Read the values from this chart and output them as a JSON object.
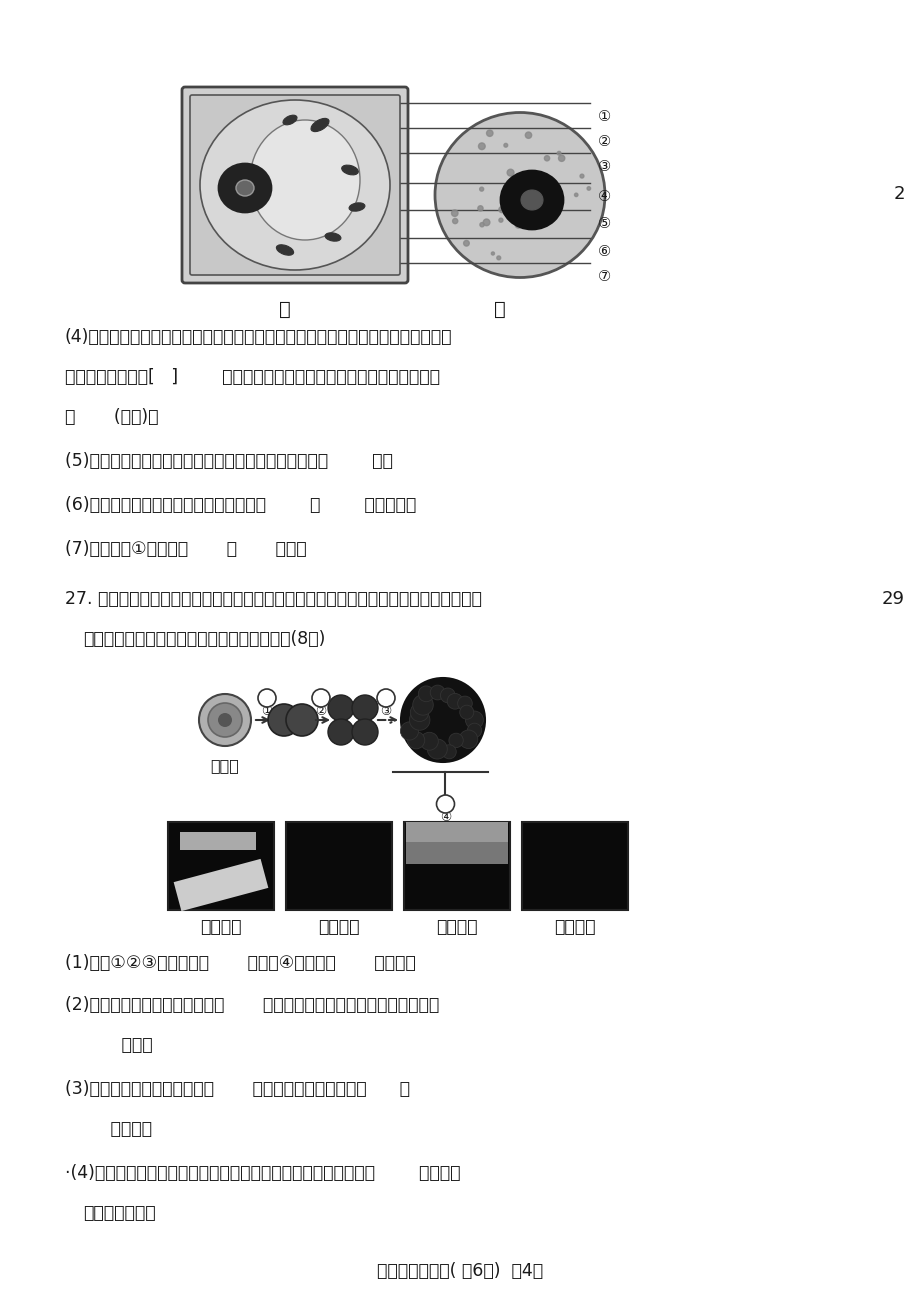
{
  "bg_color": "#ffffff",
  "text_color": "#1a1a1a",
  "page_number_right": "2",
  "page_number_right2": "29",
  "footer_text": "七年级生物试题( 共6页)  笥4页",
  "label_jia": "甲",
  "label_yi": "乙",
  "q4_text1": "(4)西瓜之所以甗甜可口，主要是因为西瓜的细胞液中含有较多的糖分，这些细胞主",
  "q4_text2": "要来自细胞结构的[   ]        。控制西瓜甗甜可口这一性状的物质存在于图中",
  "q4_text3": "的       (序号)。",
  "q5_text": "(5)含遗传信息决定生物的性状的结构存在于图中的标号        内。",
  "q6_text": "(6)甲乙两图所示的结构中，相同点是都有        、        和细胞膜。",
  "q7_text": "(7)甲图中的①对细胞起       和       作用。",
  "q27_intro1": "27. 你从一个受精卵发育成为一个小帅哥、小美女，让我们看到了生命的奇妙变化，下图",
  "q27_intro2": "所示为人体组织形成过程，请分析回答问题；(8分)",
  "tissue_labels": [
    "上皮组织",
    "肌肉组织",
    "神经组织",
    "结缔组织"
  ],
  "label_shoujingluanf": "受精卵",
  "q27_q1": "(1)图中①②③表示细胞的       过程，④表示细胞       的过程。",
  "q27_q2a": "(2)人的大脑皮层主要由上图中的       组织构成，人体内的血液属于上图中的",
  "q27_q2b": "       组织。",
  "q27_q3a": "(3)植物体能够由小长大，是从       开始的，与细胞的生长、      和",
  "q27_q3b": "     分不开。",
  "q27_q4a": "·(4)对于人体来说，细胞分化形成组织后，组织进一步形成器官、        ，才能构",
  "q27_q4b": "成完整的人体。"
}
